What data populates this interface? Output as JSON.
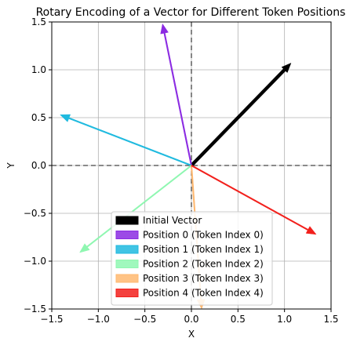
{
  "chart_data": {
    "type": "quiver",
    "title": "Rotary Encoding of a Vector for Different Token Positions",
    "xlabel": "X",
    "ylabel": "Y",
    "xlim": [
      -1.5,
      1.5
    ],
    "ylim": [
      -1.5,
      1.5
    ],
    "xticks": [
      "−1.5",
      "−1.0",
      "−0.5",
      "0.0",
      "0.5",
      "1.0",
      "1.5"
    ],
    "yticks": [
      "−1.5",
      "−1.0",
      "−0.5",
      "0.0",
      "0.5",
      "1.0",
      "1.5"
    ],
    "grid": true,
    "reference_lines": [
      {
        "orientation": "horizontal",
        "value": 0,
        "style": "dashed"
      },
      {
        "orientation": "vertical",
        "value": 0,
        "style": "dashed"
      }
    ],
    "legend_position": "lower-center",
    "vectors": [
      {
        "name": "Initial Vector",
        "x": 1.07,
        "y": 1.07,
        "color": "#000000"
      },
      {
        "name": "Position 0 (Token Index 0)",
        "x": -0.31,
        "y": 1.48,
        "color": "#8b2be2"
      },
      {
        "name": "Position 1 (Token Index 1)",
        "x": -1.41,
        "y": 0.53,
        "color": "#1fbadf"
      },
      {
        "name": "Position 2 (Token Index 2)",
        "x": -1.2,
        "y": -0.91,
        "color": "#8ff7b1"
      },
      {
        "name": "Position 3 (Token Index 3)",
        "x": 0.11,
        "y": -1.5,
        "color": "#ffb870"
      },
      {
        "name": "Position 4 (Token Index 4)",
        "x": 1.34,
        "y": -0.72,
        "color": "#f2201c"
      }
    ]
  }
}
